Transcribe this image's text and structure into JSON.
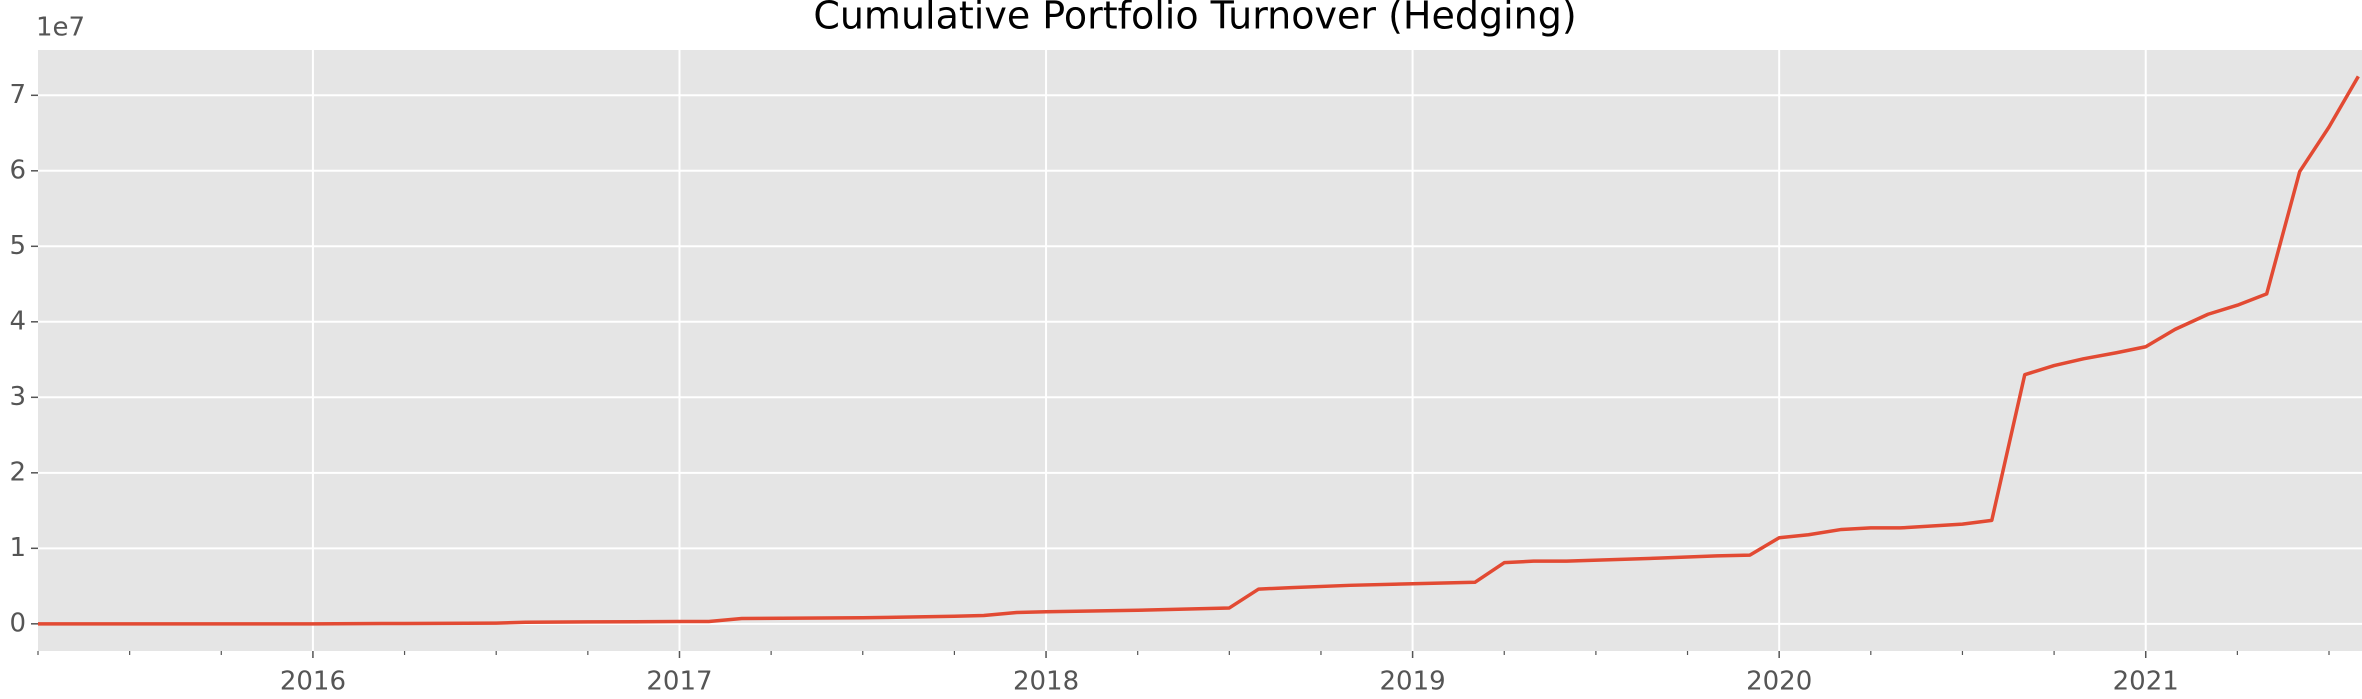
{
  "chart_data": {
    "type": "line",
    "title": "Cumulative Portfolio Turnover (Hedging)",
    "y_offset_label": "1e7",
    "x": [
      2015.25,
      2015.5,
      2015.75,
      2016.0,
      2016.25,
      2016.5,
      2016.58,
      2016.75,
      2017.0,
      2017.08,
      2017.17,
      2017.5,
      2017.75,
      2017.83,
      2017.92,
      2018.0,
      2018.25,
      2018.5,
      2018.58,
      2018.67,
      2018.83,
      2019.0,
      2019.17,
      2019.25,
      2019.33,
      2019.42,
      2019.67,
      2019.83,
      2019.92,
      2020.0,
      2020.08,
      2020.17,
      2020.25,
      2020.33,
      2020.5,
      2020.58,
      2020.67,
      2020.75,
      2020.83,
      2020.92,
      2021.0,
      2021.08,
      2021.17,
      2021.25,
      2021.33,
      2021.42,
      2021.5,
      2021.58
    ],
    "series": [
      {
        "color": "#e24a33",
        "values": [
          0,
          0,
          0,
          0,
          0.005,
          0.01,
          0.02,
          0.025,
          0.03,
          0.03,
          0.07,
          0.08,
          0.1,
          0.11,
          0.15,
          0.16,
          0.18,
          0.21,
          0.46,
          0.48,
          0.51,
          0.53,
          0.55,
          0.81,
          0.83,
          0.83,
          0.87,
          0.9,
          0.91,
          1.14,
          1.18,
          1.25,
          1.27,
          1.27,
          1.32,
          1.37,
          3.3,
          3.42,
          3.51,
          3.59,
          3.67,
          3.9,
          4.1,
          4.22,
          4.37,
          5.99,
          6.58,
          7.25
        ]
      }
    ],
    "xlim": [
      2015.25,
      2021.59
    ],
    "xticks": [
      2016,
      2017,
      2018,
      2019,
      2020,
      2021
    ],
    "xminorticks": [
      2015.25,
      2015.5,
      2015.75,
      2016.25,
      2016.5,
      2016.75,
      2017.25,
      2017.5,
      2017.75,
      2018.25,
      2018.5,
      2018.75,
      2019.25,
      2019.5,
      2019.75,
      2020.25,
      2020.5,
      2020.75,
      2021.25,
      2021.5
    ],
    "ylim": [
      -0.36,
      7.6
    ],
    "yticks": [
      0,
      1,
      2,
      3,
      4,
      5,
      6,
      7
    ],
    "grid": true,
    "background": "#e5e5e5",
    "grid_color": "#ffffff"
  }
}
